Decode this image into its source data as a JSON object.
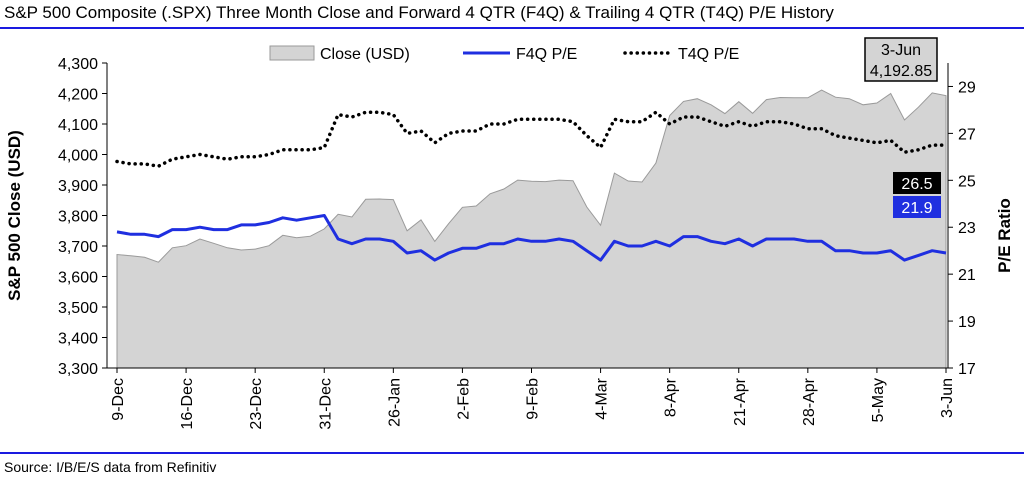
{
  "title": "S&P 500 Composite (.SPX) Three Month Close and Forward 4 QTR (F4Q) & Trailing 4 QTR (T4Q) P/E History",
  "source": "Source: I/B/E/S data from Refinitiv",
  "chart_data": {
    "type": "area+line",
    "ylabel_left": "S&P 500 Close (USD)",
    "ylabel_right": "P/E Ratio",
    "ylim_left": [
      3300,
      4300
    ],
    "ylim_right": [
      17,
      30
    ],
    "left_ticks": [
      "3,300",
      "3,400",
      "3,500",
      "3,600",
      "3,700",
      "3,800",
      "3,900",
      "4,000",
      "4,100",
      "4,200",
      "4,300"
    ],
    "right_ticks": [
      "17",
      "19",
      "21",
      "23",
      "25",
      "27",
      "29"
    ],
    "x_tick_labels": [
      "9-Dec",
      "16-Dec",
      "23-Dec",
      "31-Dec",
      "26-Jan",
      "2-Feb",
      "9-Feb",
      "4-Mar",
      "8-Apr",
      "21-Apr",
      "28-Apr",
      "5-May",
      "3-Jun"
    ],
    "x_tick_positions": [
      0,
      5,
      10,
      15,
      20,
      25,
      30,
      35,
      40,
      45,
      50,
      55,
      60
    ],
    "legend": [
      "Close (USD)",
      "F4Q P/E",
      "T4Q P/E"
    ],
    "colors": {
      "close": "#d4d4d4",
      "f4q": "#1f2fe0",
      "t4q": "#000000"
    },
    "series": [
      {
        "name": "Close (USD)",
        "axis": "left",
        "values": [
          3672,
          3668,
          3663,
          3647,
          3694,
          3701,
          3723,
          3709,
          3694,
          3687,
          3690,
          3701,
          3735,
          3727,
          3732,
          3756,
          3804,
          3795,
          3853,
          3854,
          3852,
          3750,
          3786,
          3715,
          3773,
          3827,
          3831,
          3871,
          3887,
          3916,
          3912,
          3911,
          3916,
          3914,
          3828,
          3768,
          3939,
          3913,
          3910,
          3972,
          4128,
          4174,
          4183,
          4163,
          4134,
          4173,
          4135,
          4180,
          4187,
          4186,
          4186,
          4211,
          4188,
          4183,
          4163,
          4169,
          4200,
          4113,
          4155,
          4202,
          4193
        ]
      },
      {
        "name": "F4Q P/E",
        "axis": "right",
        "values": [
          22.8,
          22.7,
          22.7,
          22.6,
          22.9,
          22.9,
          23.0,
          22.9,
          22.9,
          23.1,
          23.1,
          23.2,
          23.4,
          23.3,
          23.4,
          23.5,
          22.5,
          22.3,
          22.5,
          22.5,
          22.4,
          21.9,
          22.0,
          21.6,
          21.9,
          22.1,
          22.1,
          22.3,
          22.3,
          22.5,
          22.4,
          22.4,
          22.5,
          22.4,
          22.0,
          21.6,
          22.4,
          22.2,
          22.2,
          22.4,
          22.2,
          22.6,
          22.6,
          22.4,
          22.3,
          22.5,
          22.2,
          22.5,
          22.5,
          22.5,
          22.4,
          22.4,
          22.0,
          22.0,
          21.9,
          21.9,
          22.0,
          21.6,
          21.8,
          22.0,
          21.9
        ]
      },
      {
        "name": "T4Q P/E",
        "axis": "right",
        "values": [
          25.8,
          25.7,
          25.7,
          25.6,
          25.9,
          26.0,
          26.1,
          26.0,
          25.9,
          26.0,
          26.0,
          26.1,
          26.3,
          26.3,
          26.3,
          26.4,
          27.8,
          27.7,
          27.9,
          27.9,
          27.8,
          27.0,
          27.1,
          26.6,
          27.0,
          27.1,
          27.1,
          27.4,
          27.4,
          27.6,
          27.6,
          27.6,
          27.6,
          27.5,
          26.9,
          26.4,
          27.6,
          27.5,
          27.5,
          27.9,
          27.4,
          27.7,
          27.7,
          27.5,
          27.3,
          27.5,
          27.3,
          27.5,
          27.5,
          27.4,
          27.2,
          27.2,
          26.9,
          26.8,
          26.7,
          26.6,
          26.7,
          26.2,
          26.3,
          26.5,
          26.5
        ]
      }
    ],
    "callouts": {
      "date": "3-Jun",
      "close": "4,192.85",
      "t4q": "26.5",
      "f4q": "21.9"
    }
  }
}
